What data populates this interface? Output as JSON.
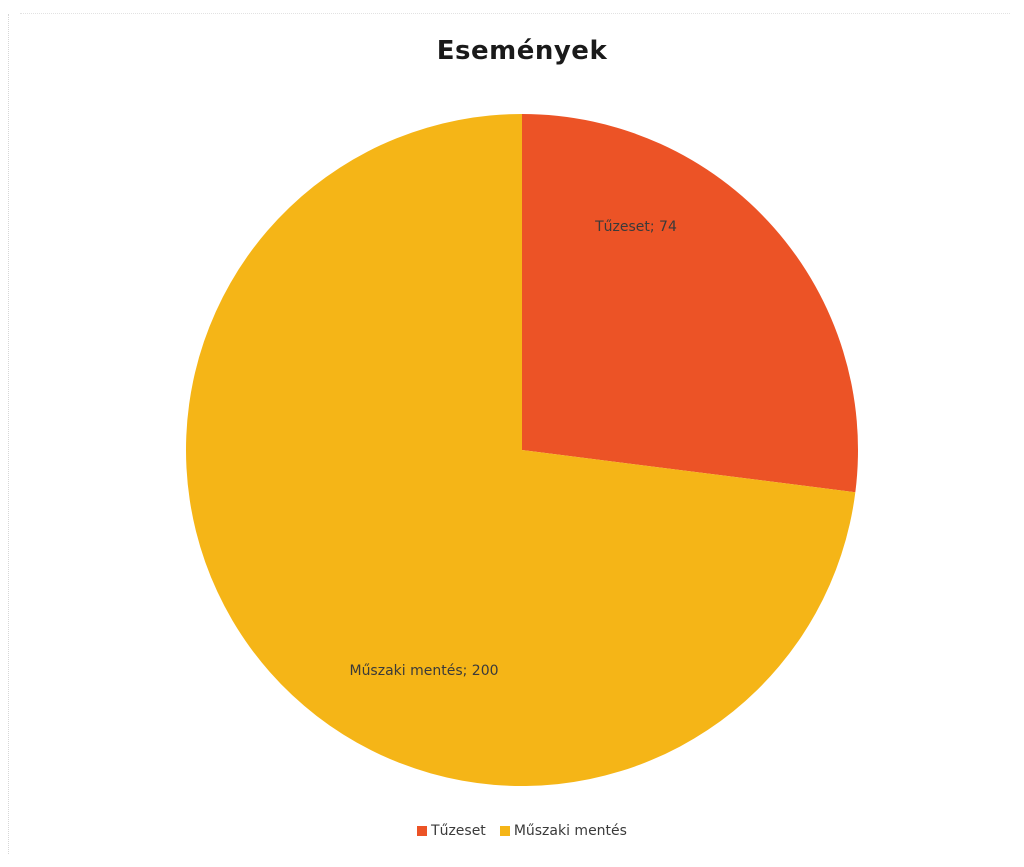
{
  "chart_data": {
    "type": "pie",
    "title": "Események",
    "categories": [
      "Tűzeset",
      "Műszaki mentés"
    ],
    "values": [
      74,
      200
    ],
    "slices": [
      {
        "name": "Tűzeset",
        "value": 74,
        "label": "Tűzeset; 74",
        "color": "#ec5326"
      },
      {
        "name": "Műszaki mentés",
        "value": 200,
        "label": "Műszaki mentés; 200",
        "color": "#f5b517"
      }
    ],
    "legend": {
      "placement": "bottom",
      "items": [
        {
          "label": "Tűzeset",
          "color": "#ec5326"
        },
        {
          "label": "Műszaki mentés",
          "color": "#f5b517"
        }
      ]
    },
    "start_angle": "12 o'clock",
    "direction": "clockwise"
  }
}
